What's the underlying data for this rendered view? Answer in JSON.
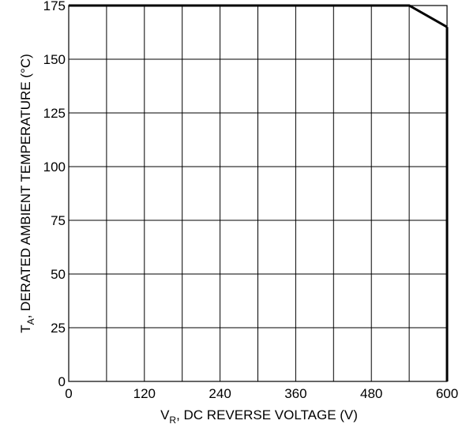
{
  "chart_data": {
    "type": "line",
    "xlabel": {
      "main": "V",
      "sub": "R",
      "rest": ", DC REVERSE VOLTAGE (V)"
    },
    "ylabel": {
      "main": "T",
      "sub": "A",
      "rest": ", DERATED AMBIENT TEMPERATURE (°C)"
    },
    "xlim": [
      0,
      600
    ],
    "ylim": [
      0,
      175
    ],
    "x_ticks": [
      0,
      120,
      240,
      360,
      480,
      600
    ],
    "x_grid": [
      0,
      60,
      120,
      180,
      240,
      300,
      360,
      420,
      480,
      540,
      600
    ],
    "y_ticks": [
      0,
      25,
      50,
      75,
      100,
      125,
      150,
      175
    ],
    "grid": true,
    "series": [
      {
        "x": [
          0,
          540,
          600
        ],
        "y": [
          175,
          175,
          165
        ]
      }
    ]
  }
}
